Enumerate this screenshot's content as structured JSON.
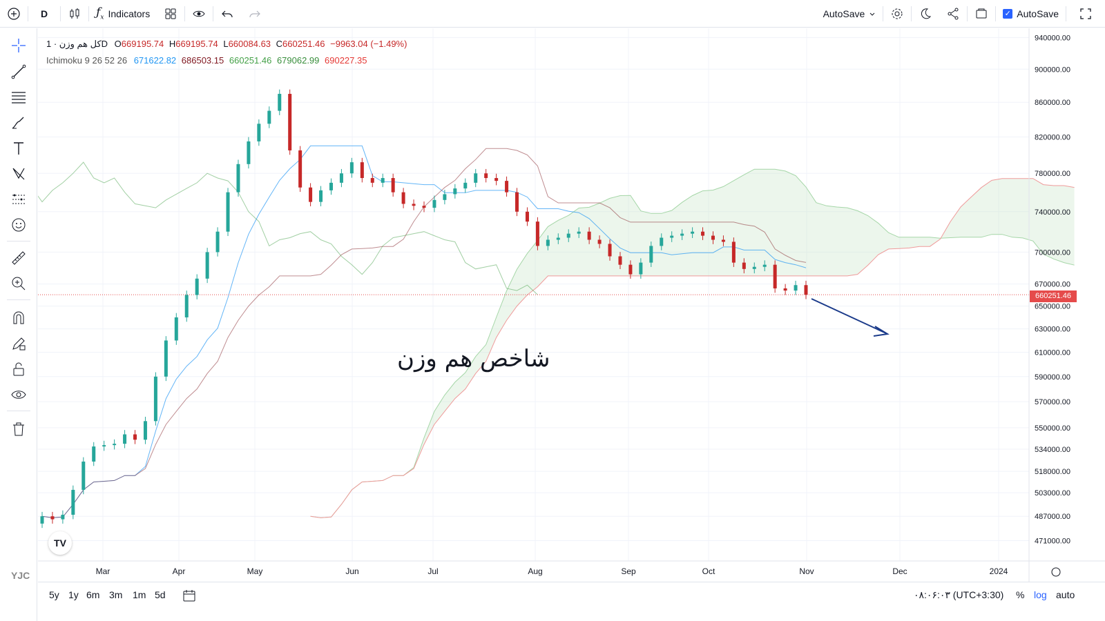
{
  "toolbar": {
    "interval": "D",
    "indicators_label": "Indicators",
    "autosave_label": "AutoSave",
    "autosave_check_label": "AutoSave"
  },
  "legend": {
    "symbol": "کل هم وزن · 1D",
    "open_label": "O",
    "open": "669195.74",
    "high_label": "H",
    "high": "669195.74",
    "low_label": "L",
    "low": "660084.63",
    "close_label": "C",
    "close": "660251.46",
    "change": "−9963.04 (−1.49%)",
    "indicator_name": "Ichimoku 9 26 52 26",
    "indicator_values": [
      "671622.82",
      "686503.15",
      "660251.46",
      "679062.99",
      "690227.35"
    ],
    "indicator_colors": [
      "#2196f3",
      "#801922",
      "#43a047",
      "#388e3c",
      "#e53935"
    ]
  },
  "watermark": "شاخص هم وزن",
  "price_tag": "660251.46",
  "bottom": {
    "ranges": [
      "5y",
      "1y",
      "6m",
      "3m",
      "1m",
      "5d"
    ],
    "time": "۰۸:۰۶:۰۳ (UTC+3:30)",
    "percent": "%",
    "log": "log",
    "auto": "auto"
  },
  "logo": {
    "watermark_text": "YJC"
  },
  "chart_data": {
    "type": "candlestick",
    "title": "کل هم وزن · 1D",
    "y_scale": "log",
    "y_ticks": [
      940000,
      900000,
      860000,
      820000,
      780000,
      740000,
      700000,
      670000,
      650000,
      630000,
      610000,
      590000,
      570000,
      550000,
      534000,
      518000,
      503000,
      487000,
      471000
    ],
    "y_tick_labels": [
      "940000.00",
      "900000.00",
      "860000.00",
      "820000.00",
      "780000.00",
      "740000.00",
      "700000.00",
      "670000.00",
      "650000.00",
      "630000.00",
      "610000.00",
      "590000.00",
      "570000.00",
      "550000.00",
      "534000.00",
      "518000.00",
      "503000.00",
      "487000.00",
      "471000.00"
    ],
    "x_tick_labels": [
      "Mar",
      "Apr",
      "May",
      "Jun",
      "Jul",
      "Aug",
      "Sep",
      "Oct",
      "Nov",
      "Dec",
      "2024"
    ],
    "last_price": 660251.46,
    "colors": {
      "up": "#26a69a",
      "down": "#c62828",
      "tenkan": "#2196f3",
      "kijun": "#801922",
      "lagging": "#43a047",
      "span_a": "#a5d6a7",
      "span_b": "#ef9a9a"
    },
    "series": [
      {
        "name": "close",
        "values": [
          487000,
          485000,
          488000,
          505000,
          525000,
          536000,
          537000,
          538000,
          545000,
          541000,
          555000,
          590000,
          620000,
          640000,
          660000,
          675000,
          700000,
          720000,
          760000,
          790000,
          815000,
          835000,
          850000,
          870000,
          805000,
          765000,
          750000,
          762000,
          770000,
          780000,
          792000,
          775000,
          770000,
          775000,
          760000,
          748000,
          746000,
          744000,
          752000,
          758000,
          764000,
          770000,
          780000,
          775000,
          772000,
          760000,
          740000,
          730000,
          706000,
          712000,
          714000,
          718000,
          720000,
          712000,
          708000,
          696000,
          688000,
          679000,
          690000,
          706000,
          714000,
          716000,
          718000,
          720000,
          716000,
          712000,
          710000,
          690000,
          684000,
          686000,
          688000,
          666000,
          664000,
          669000,
          660251
        ]
      }
    ]
  }
}
